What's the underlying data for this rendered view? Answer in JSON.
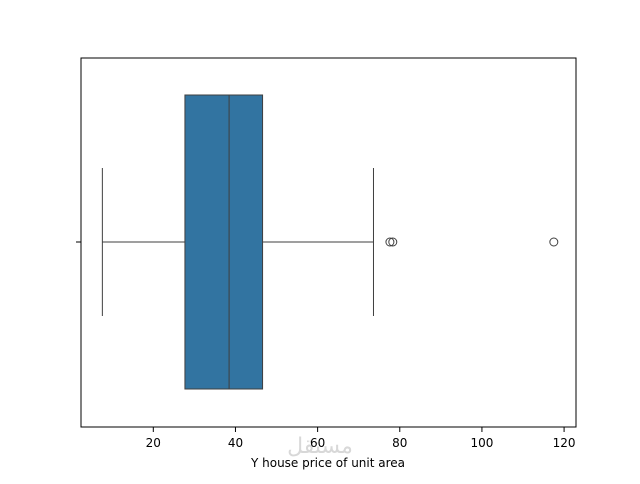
{
  "chart_data": {
    "type": "box",
    "x_label": "Y house price of unit area",
    "watermark": "مستقل",
    "whisker_low": 7.6,
    "q1": 27.7,
    "median": 38.45,
    "q3": 46.6,
    "whisker_high": 73.6,
    "outliers": [
      77.6,
      78.3,
      117.5
    ],
    "color": "#3274a1",
    "xlim": [
      2.4,
      122.9
    ],
    "xticks": [
      20,
      40,
      60,
      80,
      100,
      120
    ]
  }
}
